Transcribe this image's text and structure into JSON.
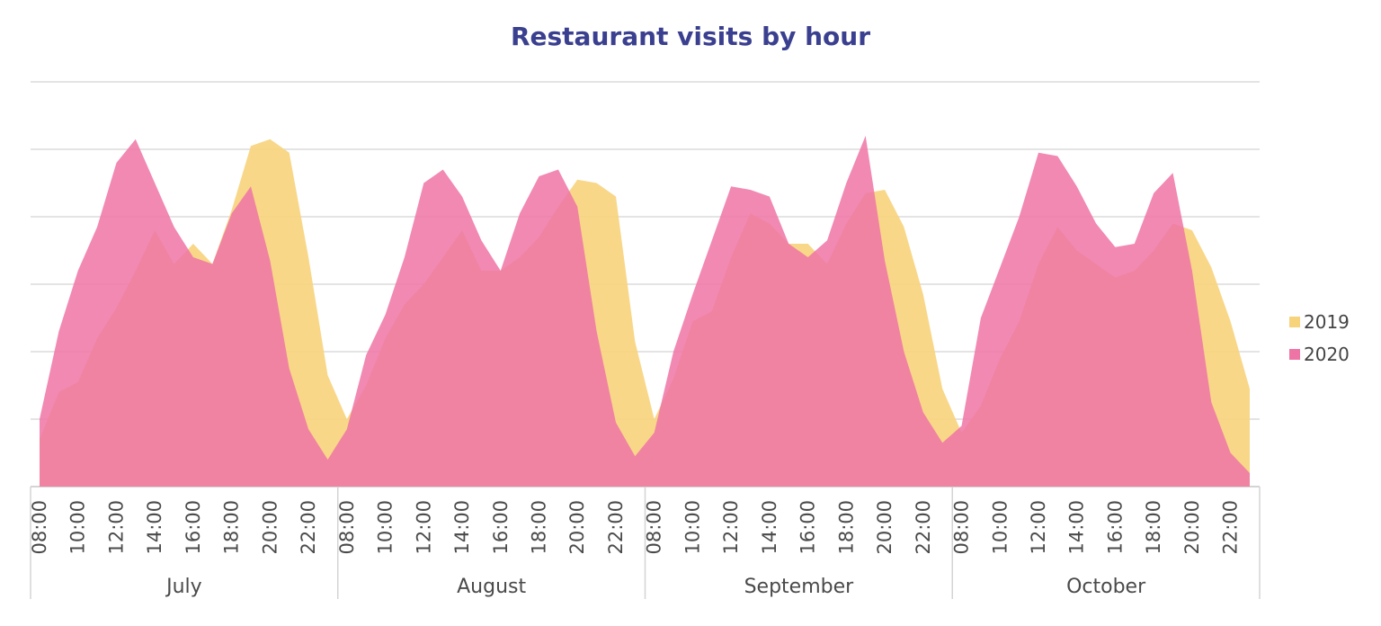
{
  "chart_data": {
    "type": "area",
    "title": "Restaurant visits by hour",
    "xlabel": "",
    "ylabel": "",
    "grid": true,
    "legend_position": "right",
    "ylim": [
      0,
      60
    ],
    "months": [
      "July",
      "August",
      "September",
      "October"
    ],
    "hours": [
      "08:00",
      "09:00",
      "10:00",
      "11:00",
      "12:00",
      "13:00",
      "14:00",
      "15:00",
      "16:00",
      "17:00",
      "18:00",
      "19:00",
      "20:00",
      "21:00",
      "22:00",
      "23:00"
    ],
    "tick_labels": [
      "08:00",
      "10:00",
      "12:00",
      "14:00",
      "16:00",
      "18:00",
      "20:00",
      "22:00"
    ],
    "series": [
      {
        "name": "2019",
        "color": "#f7d37c",
        "values": [
          [
            7,
            14,
            15.5,
            22,
            26.5,
            32,
            38,
            33,
            36,
            33,
            41,
            50.5,
            51.5,
            49.5,
            34,
            16.5
          ],
          [
            10,
            15,
            22,
            27,
            30,
            34,
            38,
            32,
            32,
            34,
            37,
            41.5,
            45.5,
            45,
            43,
            21.5
          ],
          [
            10,
            16,
            24.5,
            26,
            34,
            40.5,
            39,
            36,
            36,
            33,
            39,
            43.5,
            44,
            38.5,
            28.5,
            14.5
          ],
          [
            8,
            12,
            19,
            24.5,
            33,
            38.5,
            35,
            33,
            31,
            32,
            35,
            39,
            38,
            32.5,
            24.5,
            14.5
          ]
        ]
      },
      {
        "name": "2020",
        "color": "#ef74a6",
        "values": [
          [
            10,
            23,
            32,
            38.5,
            48,
            51.5,
            45,
            38.5,
            34,
            33,
            40.5,
            44.5,
            33.5,
            17.5,
            8.5,
            4
          ],
          [
            8.5,
            19.5,
            25.5,
            34,
            45,
            47,
            43,
            36.5,
            32,
            40.5,
            46,
            47,
            41.5,
            23,
            9.5,
            4.5
          ],
          [
            8,
            20,
            28.5,
            36.5,
            44.5,
            44,
            43,
            36,
            34,
            36.5,
            45,
            52,
            33.5,
            20,
            11,
            6.5
          ],
          [
            9,
            25,
            32.5,
            40,
            49.5,
            49,
            44.5,
            39,
            35.5,
            36,
            43.5,
            46.5,
            32,
            12.5,
            5,
            2
          ]
        ]
      }
    ]
  }
}
